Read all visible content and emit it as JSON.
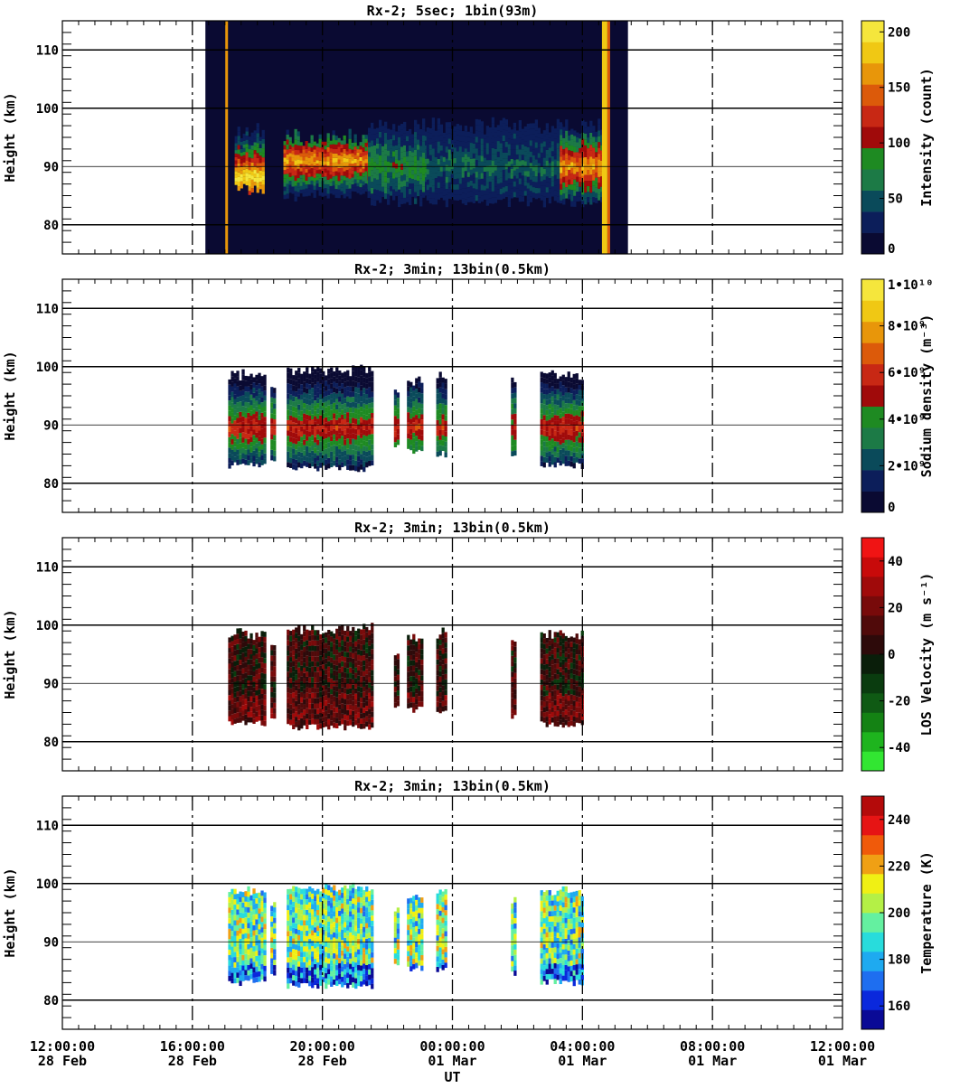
{
  "figure": {
    "xlabel": "UT",
    "xticks": [
      {
        "time": "12:00:00",
        "date": "28 Feb"
      },
      {
        "time": "16:00:00",
        "date": "28 Feb"
      },
      {
        "time": "20:00:00",
        "date": "28 Feb"
      },
      {
        "time": "00:00:00",
        "date": "01 Mar"
      },
      {
        "time": "04:00:00",
        "date": "01 Mar"
      },
      {
        "time": "08:00:00",
        "date": "01 Mar"
      },
      {
        "time": "12:00:00",
        "date": "01 Mar"
      }
    ]
  },
  "chart_data": [
    {
      "type": "heatmap",
      "title": "Rx-2;  5sec; 1bin(93m)",
      "xlabel": "UT",
      "ylabel": "Height (km)",
      "x_range_hours": [
        0,
        24
      ],
      "x_reference": "28 Feb 12:00:00 UT",
      "ylim": [
        75,
        115
      ],
      "yticks": [
        80,
        90,
        100,
        110
      ],
      "data_coverage_hours": [
        4.4,
        17.4
      ],
      "colorbar": {
        "label": "Intensity (count)",
        "range": [
          0,
          210
        ],
        "tick_values": [
          0,
          50,
          100,
          150,
          200
        ],
        "tick_labels": [
          "0",
          "50",
          "100",
          "150",
          "200"
        ],
        "colors": [
          "#0a0a32",
          "#0c1e5a",
          "#0a4a5a",
          "#1c7a46",
          "#1e8a22",
          "#a00a0a",
          "#c82814",
          "#dc5a0a",
          "#e8960a",
          "#f0c814",
          "#f5e63c"
        ]
      },
      "features": [
        {
          "start_h": 5.3,
          "end_h": 6.2,
          "bottom_km": 86,
          "top_km": 96,
          "peak_km": 88,
          "level": 1.0
        },
        {
          "start_h": 6.8,
          "end_h": 9.4,
          "bottom_km": 85,
          "top_km": 95,
          "peak_km": 91,
          "level": 0.85
        },
        {
          "start_h": 9.4,
          "end_h": 11.2,
          "bottom_km": 84,
          "top_km": 97,
          "peak_km": 90,
          "level": 0.4
        },
        {
          "start_h": 11.2,
          "end_h": 15.3,
          "bottom_km": 84,
          "top_km": 97,
          "peak_km": 90,
          "level": 0.25
        },
        {
          "start_h": 15.3,
          "end_h": 16.6,
          "bottom_km": 84,
          "top_km": 97,
          "peak_km": 90,
          "level": 0.85
        }
      ]
    },
    {
      "type": "heatmap",
      "title": "Rx-2; 3min; 13bin(0.5km)",
      "xlabel": "UT",
      "ylabel": "Height (km)",
      "x_range_hours": [
        0,
        24
      ],
      "ylim": [
        75,
        115
      ],
      "yticks": [
        80,
        90,
        100,
        110
      ],
      "colorbar": {
        "label": "Sodium density (m⁻³)",
        "range": [
          0,
          10000000000
        ],
        "tick_values": [
          0,
          2000000000,
          4000000000,
          6000000000,
          8000000000,
          10000000000
        ],
        "tick_labels": [
          "0",
          "2•10⁹",
          "4•10⁹",
          "6•10⁹",
          "8•10⁹",
          "1•10¹⁰"
        ],
        "colors": [
          "#0a0a32",
          "#0c1e5a",
          "#0a4a5a",
          "#1c7a46",
          "#1e8a22",
          "#a00a0a",
          "#c82814",
          "#dc5a0a",
          "#e8960a",
          "#f0c814",
          "#f5e63c"
        ]
      },
      "segments": [
        {
          "start_h": 5.1,
          "end_h": 6.2,
          "bottom_km": 83,
          "top_km": 98
        },
        {
          "start_h": 6.4,
          "end_h": 6.5,
          "bottom_km": 84,
          "top_km": 96
        },
        {
          "start_h": 6.9,
          "end_h": 9.5,
          "bottom_km": 82.5,
          "top_km": 99
        },
        {
          "start_h": 10.2,
          "end_h": 10.3,
          "bottom_km": 86,
          "top_km": 95
        },
        {
          "start_h": 10.6,
          "end_h": 11.1,
          "bottom_km": 85.5,
          "top_km": 97
        },
        {
          "start_h": 11.5,
          "end_h": 11.8,
          "bottom_km": 85,
          "top_km": 98
        },
        {
          "start_h": 13.8,
          "end_h": 13.9,
          "bottom_km": 84.5,
          "top_km": 97
        },
        {
          "start_h": 14.7,
          "end_h": 16.0,
          "bottom_km": 83,
          "top_km": 98
        }
      ]
    },
    {
      "type": "heatmap",
      "title": "Rx-2; 3min; 13bin(0.5km)",
      "xlabel": "UT",
      "ylabel": "Height (km)",
      "x_range_hours": [
        0,
        24
      ],
      "ylim": [
        75,
        115
      ],
      "yticks": [
        80,
        90,
        100,
        110
      ],
      "colorbar": {
        "label": "LOS Velocity (m s⁻¹)",
        "range": [
          -50,
          50
        ],
        "tick_values": [
          -40,
          -20,
          0,
          20,
          40
        ],
        "tick_labels": [
          "-40",
          "-20",
          "0",
          "20",
          "40"
        ],
        "colors": [
          "#32e632",
          "#1eb41e",
          "#148214",
          "#0f5a14",
          "#0a3c0f",
          "#0a1e0a",
          "#2d0a0a",
          "#500a0a",
          "#780a0a",
          "#a00a0a",
          "#c80a0a",
          "#f01414"
        ]
      },
      "segments": [
        {
          "start_h": 5.1,
          "end_h": 6.2,
          "bottom_km": 83,
          "top_km": 98
        },
        {
          "start_h": 6.4,
          "end_h": 6.5,
          "bottom_km": 84,
          "top_km": 96
        },
        {
          "start_h": 6.9,
          "end_h": 9.5,
          "bottom_km": 82.5,
          "top_km": 99
        },
        {
          "start_h": 10.2,
          "end_h": 10.3,
          "bottom_km": 86,
          "top_km": 95
        },
        {
          "start_h": 10.6,
          "end_h": 11.1,
          "bottom_km": 85.5,
          "top_km": 97
        },
        {
          "start_h": 11.5,
          "end_h": 11.8,
          "bottom_km": 85,
          "top_km": 98
        },
        {
          "start_h": 13.8,
          "end_h": 13.9,
          "bottom_km": 84.5,
          "top_km": 97
        },
        {
          "start_h": 14.7,
          "end_h": 16.0,
          "bottom_km": 83,
          "top_km": 98
        }
      ]
    },
    {
      "type": "heatmap",
      "title": "Rx-2; 3min; 13bin(0.5km)",
      "xlabel": "UT",
      "ylabel": "Height (km)",
      "x_range_hours": [
        0,
        24
      ],
      "ylim": [
        75,
        115
      ],
      "yticks": [
        80,
        90,
        100,
        110
      ],
      "colorbar": {
        "label": "Temperature (K)",
        "range": [
          150,
          250
        ],
        "tick_values": [
          160,
          180,
          200,
          220,
          240
        ],
        "tick_labels": [
          "160",
          "180",
          "200",
          "220",
          "240"
        ],
        "colors": [
          "#0a0a96",
          "#0a28dc",
          "#1e6ef0",
          "#1eaaf0",
          "#28dcdc",
          "#64f0a0",
          "#b4f046",
          "#f0f014",
          "#f0a014",
          "#f05a0a",
          "#e61414",
          "#b40a0a"
        ]
      },
      "segments": [
        {
          "start_h": 5.1,
          "end_h": 6.2,
          "bottom_km": 83,
          "top_km": 98
        },
        {
          "start_h": 6.4,
          "end_h": 6.5,
          "bottom_km": 84,
          "top_km": 96
        },
        {
          "start_h": 6.9,
          "end_h": 9.5,
          "bottom_km": 82.5,
          "top_km": 99
        },
        {
          "start_h": 10.2,
          "end_h": 10.3,
          "bottom_km": 86,
          "top_km": 95
        },
        {
          "start_h": 10.6,
          "end_h": 11.1,
          "bottom_km": 85.5,
          "top_km": 97
        },
        {
          "start_h": 11.5,
          "end_h": 11.8,
          "bottom_km": 85,
          "top_km": 98
        },
        {
          "start_h": 13.8,
          "end_h": 13.9,
          "bottom_km": 84.5,
          "top_km": 97
        },
        {
          "start_h": 14.7,
          "end_h": 16.0,
          "bottom_km": 83,
          "top_km": 98
        }
      ]
    }
  ]
}
